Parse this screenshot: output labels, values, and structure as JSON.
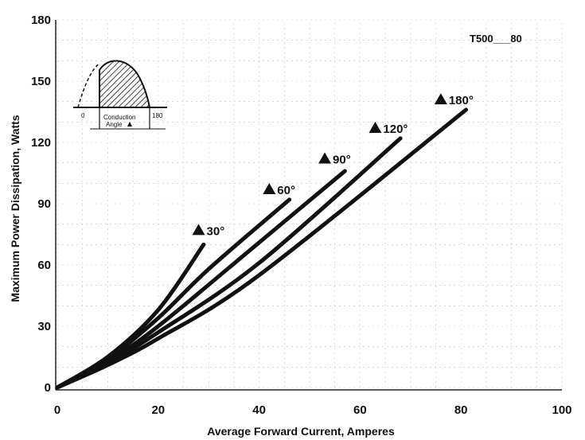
{
  "chart_data": {
    "type": "line",
    "xlabel": "Average Forward Current, Amperes",
    "ylabel": "Maximum Power Dissipation, Watts",
    "xlim": [
      0,
      100
    ],
    "ylim": [
      0,
      180
    ],
    "x_ticks": [
      "0",
      "20",
      "40",
      "60",
      "80",
      "100"
    ],
    "y_ticks": [
      "0",
      "30",
      "60",
      "90",
      "120",
      "150",
      "180"
    ],
    "reference": "T500___80",
    "series": [
      {
        "name": "30°",
        "points": [
          [
            0,
            0
          ],
          [
            10,
            15
          ],
          [
            20,
            38
          ],
          [
            29,
            70
          ]
        ],
        "label_at": [
          28,
          77
        ]
      },
      {
        "name": "60°",
        "points": [
          [
            0,
            0
          ],
          [
            10,
            14
          ],
          [
            20,
            34
          ],
          [
            30,
            58
          ],
          [
            46,
            92
          ]
        ],
        "label_at": [
          42,
          97
        ]
      },
      {
        "name": "90°",
        "points": [
          [
            0,
            0
          ],
          [
            10,
            13
          ],
          [
            20,
            30
          ],
          [
            40,
            71
          ],
          [
            57,
            106
          ]
        ],
        "label_at": [
          53,
          112
        ]
      },
      {
        "name": "120°",
        "points": [
          [
            0,
            0
          ],
          [
            10,
            12
          ],
          [
            20,
            27
          ],
          [
            40,
            61
          ],
          [
            68,
            122
          ]
        ],
        "label_at": [
          63,
          127
        ]
      },
      {
        "name": "180°",
        "points": [
          [
            0,
            0
          ],
          [
            10,
            11
          ],
          [
            20,
            24
          ],
          [
            40,
            55
          ],
          [
            81,
            136
          ]
        ],
        "label_at": [
          76,
          141
        ]
      }
    ],
    "inset": {
      "left_label": "0",
      "right_label": "180",
      "caption_line1": "Conduction",
      "caption_line2": "Angle"
    }
  }
}
